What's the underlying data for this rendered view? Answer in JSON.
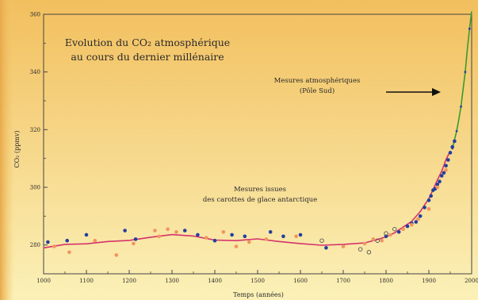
{
  "chart_data": {
    "type": "scatter",
    "title_lines": [
      "Evolution du CO₂ atmosphérique",
      "au cours du dernier millénaire"
    ],
    "xlabel": "Temps (années)",
    "ylabel": "CO₂ (ppmv)",
    "xlim": [
      1000,
      2000
    ],
    "ylim": [
      270,
      360
    ],
    "x_ticks": [
      1000,
      1100,
      1200,
      1300,
      1400,
      1500,
      1600,
      1700,
      1800,
      1900,
      2000
    ],
    "y_ticks": [
      280,
      300,
      320,
      340,
      360
    ],
    "grid": false,
    "annotations": {
      "atmospheric_lines": [
        "Mesures atmosphériques",
        "(Pôle Sud)"
      ],
      "icecore_lines": [
        "Mesures issues",
        "des carottes de glace antarctique"
      ]
    },
    "colors": {
      "background_top": "#f2bf5e",
      "background_bottom": "#fbf1b8",
      "smooth_curve": "#d5336b",
      "atmospheric_curve": "#3a9a32",
      "blue_points": "#233f9e",
      "orange_points": "#f0955f",
      "grey_points": "#555555"
    },
    "series": [
      {
        "kind": "smooth_curve",
        "points": [
          [
            1000,
            279
          ],
          [
            1050,
            280.2
          ],
          [
            1100,
            280.4
          ],
          [
            1150,
            281.2
          ],
          [
            1200,
            281.6
          ],
          [
            1250,
            282.7
          ],
          [
            1300,
            283.6
          ],
          [
            1350,
            283.1
          ],
          [
            1400,
            281.7
          ],
          [
            1450,
            281.5
          ],
          [
            1500,
            282.1
          ],
          [
            1550,
            281.2
          ],
          [
            1600,
            280.5
          ],
          [
            1650,
            279.9
          ],
          [
            1700,
            280.2
          ],
          [
            1750,
            280.7
          ],
          [
            1775,
            281.7
          ],
          [
            1800,
            282.8
          ],
          [
            1820,
            284.2
          ],
          [
            1840,
            286.2
          ],
          [
            1860,
            288.2
          ],
          [
            1880,
            291.6
          ],
          [
            1900,
            296.1
          ],
          [
            1910,
            299.2
          ],
          [
            1920,
            302.6
          ],
          [
            1930,
            305.6
          ],
          [
            1940,
            309.6
          ],
          [
            1950,
            312.6
          ]
        ]
      },
      {
        "kind": "atmospheric_curve",
        "points": [
          [
            1955,
            313.5
          ],
          [
            1960,
            316.5
          ],
          [
            1965,
            319.5
          ],
          [
            1970,
            323.5
          ],
          [
            1975,
            328
          ],
          [
            1980,
            334
          ],
          [
            1985,
            340
          ],
          [
            1990,
            348
          ],
          [
            1995,
            355
          ],
          [
            2000,
            361
          ]
        ]
      },
      {
        "kind": "points_blue",
        "points": [
          [
            1010,
            281
          ],
          [
            1055,
            281.5
          ],
          [
            1100,
            283.5
          ],
          [
            1190,
            285
          ],
          [
            1215,
            282
          ],
          [
            1330,
            285
          ],
          [
            1360,
            283.5
          ],
          [
            1400,
            281.5
          ],
          [
            1440,
            283.5
          ],
          [
            1470,
            283
          ],
          [
            1530,
            284.5
          ],
          [
            1560,
            283
          ],
          [
            1600,
            283.5
          ],
          [
            1660,
            279
          ],
          [
            1800,
            283
          ],
          [
            1830,
            284.5
          ],
          [
            1850,
            286.5
          ],
          [
            1860,
            287.5
          ],
          [
            1870,
            288
          ],
          [
            1880,
            290
          ],
          [
            1890,
            293
          ],
          [
            1900,
            295.5
          ],
          [
            1905,
            297
          ],
          [
            1910,
            299
          ],
          [
            1915,
            299.5
          ],
          [
            1920,
            301
          ],
          [
            1925,
            302
          ],
          [
            1930,
            304
          ],
          [
            1935,
            305
          ],
          [
            1940,
            307.5
          ],
          [
            1945,
            309.5
          ],
          [
            1950,
            312
          ],
          [
            1955,
            314
          ],
          [
            1960,
            316
          ]
        ]
      },
      {
        "kind": "points_orange",
        "points": [
          [
            1025,
            279.5
          ],
          [
            1060,
            277.5
          ],
          [
            1120,
            281.5
          ],
          [
            1170,
            276.5
          ],
          [
            1210,
            280.5
          ],
          [
            1260,
            285
          ],
          [
            1270,
            283
          ],
          [
            1290,
            285.5
          ],
          [
            1310,
            284.5
          ],
          [
            1380,
            282.5
          ],
          [
            1420,
            284.5
          ],
          [
            1450,
            279.5
          ],
          [
            1480,
            281
          ],
          [
            1520,
            282
          ],
          [
            1590,
            283
          ],
          [
            1700,
            279.5
          ],
          [
            1750,
            280.5
          ],
          [
            1770,
            282
          ],
          [
            1790,
            281.5
          ],
          [
            1810,
            283.5
          ],
          [
            1840,
            285.5
          ],
          [
            1860,
            287
          ],
          [
            1875,
            289
          ],
          [
            1900,
            292.5
          ],
          [
            1920,
            300
          ],
          [
            1940,
            306
          ]
        ]
      },
      {
        "kind": "points_grey",
        "points": [
          [
            1650,
            281.5
          ],
          [
            1740,
            278.5
          ],
          [
            1760,
            277.5
          ],
          [
            1780,
            281.5
          ],
          [
            1800,
            284
          ],
          [
            1820,
            285.5
          ]
        ]
      }
    ]
  }
}
